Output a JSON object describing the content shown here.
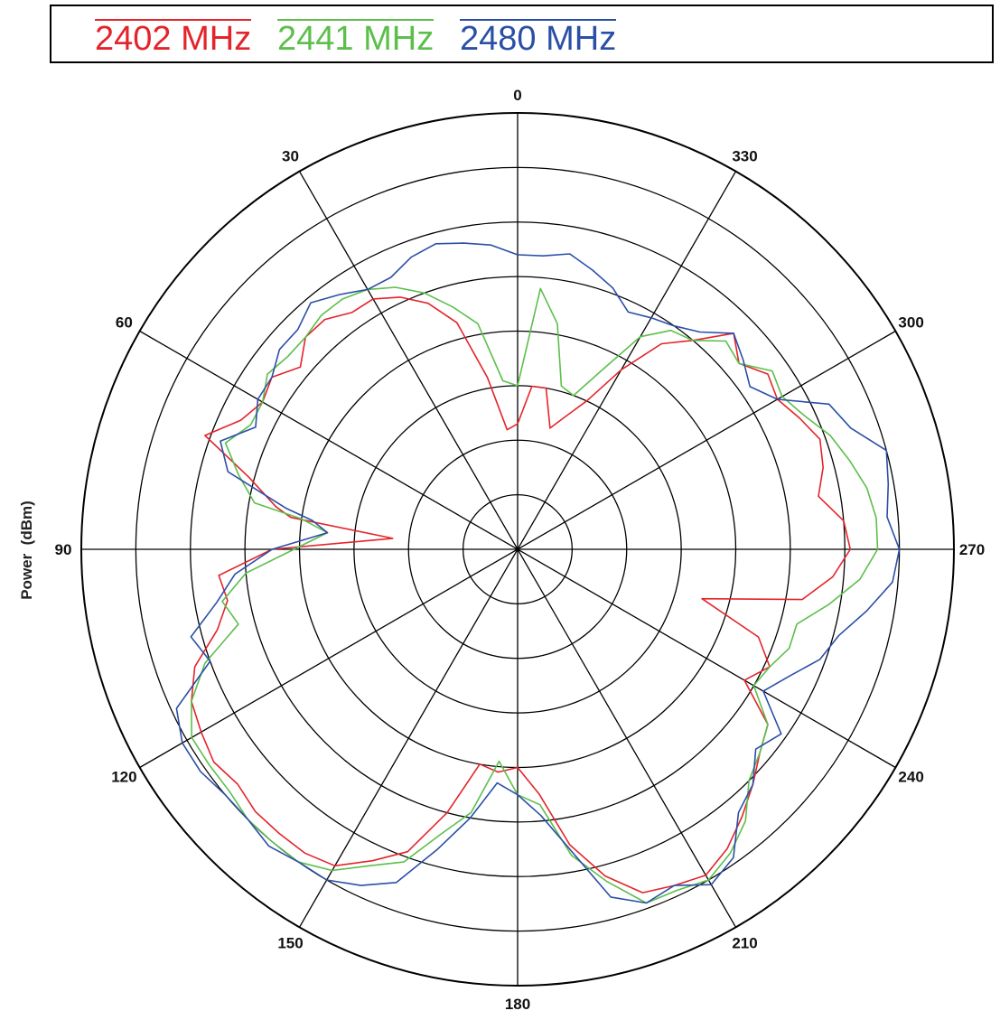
{
  "chart_data": {
    "type": "polar-line",
    "ylabel": "Power  (dBm)",
    "angle_ticks": [
      "0",
      "30",
      "60",
      "90",
      "120",
      "150",
      "180",
      "210",
      "240",
      "270",
      "300",
      "330"
    ],
    "ring_count": 8,
    "radial_max": 8,
    "angle_direction": "counterclockwise",
    "zero_location": "top",
    "legend": {
      "placement": "top"
    },
    "series": [
      {
        "name": "2402 MHz",
        "color": "#e3242b",
        "points": [
          [
            0,
            2.3
          ],
          [
            5,
            2.2
          ],
          [
            10,
            3.2
          ],
          [
            15,
            4.3
          ],
          [
            20,
            4.8
          ],
          [
            25,
            5.1
          ],
          [
            30,
            5.3
          ],
          [
            35,
            5.3
          ],
          [
            40,
            5.5
          ],
          [
            45,
            5.5
          ],
          [
            50,
            5.2
          ],
          [
            55,
            5.5
          ],
          [
            60,
            5.4
          ],
          [
            65,
            5.6
          ],
          [
            70,
            6.1
          ],
          [
            75,
            5.1
          ],
          [
            80,
            4.5
          ],
          [
            82,
            4.2
          ],
          [
            85,
            2.3
          ],
          [
            90,
            4.5
          ],
          [
            95,
            5.5
          ],
          [
            100,
            5.4
          ],
          [
            105,
            5.7
          ],
          [
            110,
            6.3
          ],
          [
            115,
            6.6
          ],
          [
            120,
            6.7
          ],
          [
            125,
            6.8
          ],
          [
            130,
            6.7
          ],
          [
            135,
            6.8
          ],
          [
            140,
            6.8
          ],
          [
            145,
            6.8
          ],
          [
            150,
            6.7
          ],
          [
            155,
            6.3
          ],
          [
            160,
            5.9
          ],
          [
            165,
            5.0
          ],
          [
            170,
            4.0
          ],
          [
            175,
            4.1
          ],
          [
            180,
            4.0
          ],
          [
            185,
            4.5
          ],
          [
            190,
            5.5
          ],
          [
            195,
            6.2
          ],
          [
            200,
            6.7
          ],
          [
            205,
            6.8
          ],
          [
            210,
            6.9
          ],
          [
            215,
            6.7
          ],
          [
            220,
            6.4
          ],
          [
            225,
            6.1
          ],
          [
            230,
            5.8
          ],
          [
            235,
            5.6
          ],
          [
            240,
            4.8
          ],
          [
            245,
            5.1
          ],
          [
            250,
            4.7
          ],
          [
            255,
            3.5
          ],
          [
            260,
            5.3
          ],
          [
            265,
            5.8
          ],
          [
            270,
            6.1
          ],
          [
            275,
            6.0
          ],
          [
            280,
            5.6
          ],
          [
            285,
            5.8
          ],
          [
            290,
            5.9
          ],
          [
            295,
            5.7
          ],
          [
            300,
            5.5
          ],
          [
            305,
            5.6
          ],
          [
            310,
            5.3
          ],
          [
            315,
            5.6
          ],
          [
            320,
            5.0
          ],
          [
            325,
            4.6
          ],
          [
            330,
            3.8
          ],
          [
            335,
            3.0
          ],
          [
            340,
            2.6
          ],
          [
            345,
            2.3
          ],
          [
            350,
            3.0
          ],
          [
            355,
            3.0
          ],
          [
            360,
            2.3
          ]
        ]
      },
      {
        "name": "2441 MHz",
        "color": "#5cbf4b",
        "points": [
          [
            0,
            3.0
          ],
          [
            5,
            3.1
          ],
          [
            10,
            4.2
          ],
          [
            15,
            4.6
          ],
          [
            20,
            5.0
          ],
          [
            25,
            5.3
          ],
          [
            30,
            5.5
          ],
          [
            35,
            5.6
          ],
          [
            40,
            5.6
          ],
          [
            45,
            5.5
          ],
          [
            50,
            5.5
          ],
          [
            55,
            5.6
          ],
          [
            60,
            5.4
          ],
          [
            65,
            5.4
          ],
          [
            70,
            5.7
          ],
          [
            75,
            5.3
          ],
          [
            80,
            4.9
          ],
          [
            82,
            4.0
          ],
          [
            85,
            3.5
          ],
          [
            90,
            4.1
          ],
          [
            95,
            5.0
          ],
          [
            100,
            5.5
          ],
          [
            105,
            5.3
          ],
          [
            110,
            6.1
          ],
          [
            115,
            6.6
          ],
          [
            120,
            6.9
          ],
          [
            125,
            6.9
          ],
          [
            130,
            6.9
          ],
          [
            135,
            7.0
          ],
          [
            140,
            7.0
          ],
          [
            145,
            7.0
          ],
          [
            150,
            6.8
          ],
          [
            155,
            6.4
          ],
          [
            160,
            6.1
          ],
          [
            165,
            5.4
          ],
          [
            170,
            4.9
          ],
          [
            175,
            3.9
          ],
          [
            180,
            4.5
          ],
          [
            185,
            4.7
          ],
          [
            190,
            5.7
          ],
          [
            195,
            6.3
          ],
          [
            200,
            6.9
          ],
          [
            205,
            6.9
          ],
          [
            210,
            7.0
          ],
          [
            215,
            6.8
          ],
          [
            220,
            6.5
          ],
          [
            225,
            6.0
          ],
          [
            230,
            5.8
          ],
          [
            235,
            5.6
          ],
          [
            240,
            5.0
          ],
          [
            245,
            5.1
          ],
          [
            250,
            5.3
          ],
          [
            255,
            5.3
          ],
          [
            260,
            5.8
          ],
          [
            265,
            6.3
          ],
          [
            270,
            6.6
          ],
          [
            275,
            6.6
          ],
          [
            280,
            6.5
          ],
          [
            285,
            6.3
          ],
          [
            290,
            6.1
          ],
          [
            295,
            5.8
          ],
          [
            300,
            5.6
          ],
          [
            305,
            5.7
          ],
          [
            310,
            5.3
          ],
          [
            315,
            5.4
          ],
          [
            320,
            5.0
          ],
          [
            325,
            4.9
          ],
          [
            330,
            4.5
          ],
          [
            335,
            3.6
          ],
          [
            340,
            3.0
          ],
          [
            345,
            3.1
          ],
          [
            350,
            4.2
          ],
          [
            355,
            4.8
          ],
          [
            360,
            3.0
          ]
        ]
      },
      {
        "name": "2480 MHz",
        "color": "#2b4fa7",
        "points": [
          [
            0,
            5.4
          ],
          [
            5,
            5.6
          ],
          [
            10,
            5.7
          ],
          [
            15,
            5.8
          ],
          [
            20,
            5.7
          ],
          [
            25,
            5.5
          ],
          [
            30,
            5.5
          ],
          [
            35,
            5.7
          ],
          [
            40,
            5.9
          ],
          [
            45,
            5.7
          ],
          [
            50,
            5.7
          ],
          [
            55,
            5.5
          ],
          [
            60,
            5.5
          ],
          [
            65,
            5.3
          ],
          [
            70,
            5.8
          ],
          [
            75,
            5.5
          ],
          [
            80,
            4.3
          ],
          [
            82,
            3.8
          ],
          [
            85,
            3.5
          ],
          [
            90,
            4.5
          ],
          [
            95,
            5.2
          ],
          [
            100,
            5.6
          ],
          [
            105,
            6.2
          ],
          [
            110,
            6.0
          ],
          [
            115,
            6.9
          ],
          [
            120,
            7.1
          ],
          [
            125,
            7.1
          ],
          [
            130,
            7.0
          ],
          [
            135,
            7.0
          ],
          [
            140,
            7.1
          ],
          [
            145,
            7.0
          ],
          [
            150,
            7.0
          ],
          [
            155,
            6.8
          ],
          [
            160,
            6.5
          ],
          [
            165,
            5.7
          ],
          [
            170,
            5.0
          ],
          [
            175,
            4.3
          ],
          [
            180,
            4.5
          ],
          [
            185,
            4.9
          ],
          [
            190,
            5.6
          ],
          [
            195,
            6.6
          ],
          [
            200,
            6.9
          ],
          [
            205,
            6.8
          ],
          [
            210,
            7.1
          ],
          [
            215,
            6.9
          ],
          [
            220,
            6.3
          ],
          [
            225,
            6.1
          ],
          [
            230,
            5.7
          ],
          [
            235,
            5.9
          ],
          [
            240,
            5.2
          ],
          [
            245,
            5.5
          ],
          [
            250,
            5.9
          ],
          [
            255,
            6.1
          ],
          [
            260,
            6.5
          ],
          [
            265,
            6.9
          ],
          [
            270,
            7.0
          ],
          [
            275,
            6.8
          ],
          [
            280,
            6.9
          ],
          [
            285,
            7.0
          ],
          [
            290,
            6.5
          ],
          [
            295,
            6.3
          ],
          [
            300,
            5.5
          ],
          [
            305,
            5.2
          ],
          [
            310,
            5.4
          ],
          [
            315,
            5.6
          ],
          [
            320,
            5.2
          ],
          [
            325,
            5.0
          ],
          [
            330,
            4.9
          ],
          [
            335,
            4.8
          ],
          [
            340,
            5.1
          ],
          [
            345,
            5.3
          ],
          [
            350,
            5.5
          ],
          [
            355,
            5.4
          ],
          [
            360,
            5.4
          ]
        ]
      }
    ]
  }
}
